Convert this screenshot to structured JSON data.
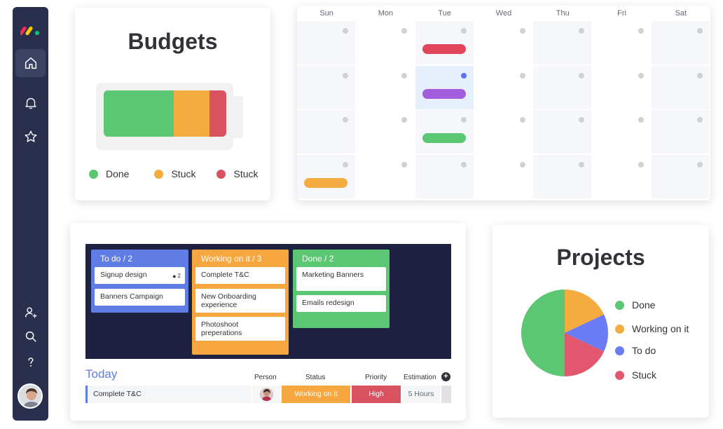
{
  "budgets": {
    "title": "Budgets",
    "battery_segments": [
      {
        "status": "Done",
        "fraction": 0.57,
        "color": "#5cc773"
      },
      {
        "status": "Stuck",
        "fraction": 0.29,
        "color": "#f4ab40"
      },
      {
        "status": "Stuck",
        "fraction": 0.14,
        "color": "#d8525f"
      }
    ],
    "legend": [
      {
        "label": "Done",
        "color": "#5cc773"
      },
      {
        "label": "Stuck",
        "color": "#f4ab40"
      },
      {
        "label": "Stuck",
        "color": "#d8525f"
      }
    ]
  },
  "calendar": {
    "days": [
      "Sun",
      "Mon",
      "Tue",
      "Wed",
      "Thu",
      "Fri",
      "Sat"
    ],
    "highlighted_day": "Tue",
    "events": [
      {
        "day": "Tue",
        "week": 1,
        "color": "#e2445c"
      },
      {
        "day": "Tue",
        "week": 2,
        "color": "#a25ddc"
      },
      {
        "day": "Tue",
        "week": 3,
        "color": "#5cc773"
      },
      {
        "day": "Sun",
        "week": 4,
        "color": "#f4ab40"
      }
    ]
  },
  "kanban": {
    "columns": [
      {
        "title": "To do / 2",
        "color": "#5f7de4",
        "cards": [
          {
            "text": "Signup design",
            "comments": "2"
          },
          {
            "text": "Banners Campaign"
          }
        ]
      },
      {
        "title": "Working on it / 3",
        "color": "#f6a740",
        "cards": [
          {
            "text": "Complete T&C"
          },
          {
            "text": "New Onboarding experience"
          },
          {
            "text": "Photoshoot preperations"
          }
        ]
      },
      {
        "title": "Done / 2",
        "color": "#5cc773",
        "cards": [
          {
            "text": "Marketing Banners"
          },
          {
            "text": "Emails redesign"
          }
        ]
      }
    ],
    "today": {
      "title": "Today",
      "headers": {
        "person": "Person",
        "status": "Status",
        "priority": "Priority",
        "estimation": "Estimation"
      },
      "row": {
        "name": "Complete T&C",
        "status": "Working on it",
        "priority": "High",
        "estimation": "5 Hours"
      }
    }
  },
  "projects": {
    "title": "Projects",
    "pie": [
      {
        "label": "Done",
        "value": 50,
        "color": "#5cc773"
      },
      {
        "label": "Working on it",
        "value": 18,
        "color": "#f4ab40"
      },
      {
        "label": "To do",
        "value": 14,
        "color": "#6a7cf4"
      },
      {
        "label": "Stuck",
        "value": 18,
        "color": "#e2566e"
      }
    ]
  },
  "sidebar": {
    "icons": [
      "logo-icon",
      "home-icon",
      "bell-icon",
      "star-icon",
      "add-user-icon",
      "search-icon",
      "help-icon"
    ]
  }
}
